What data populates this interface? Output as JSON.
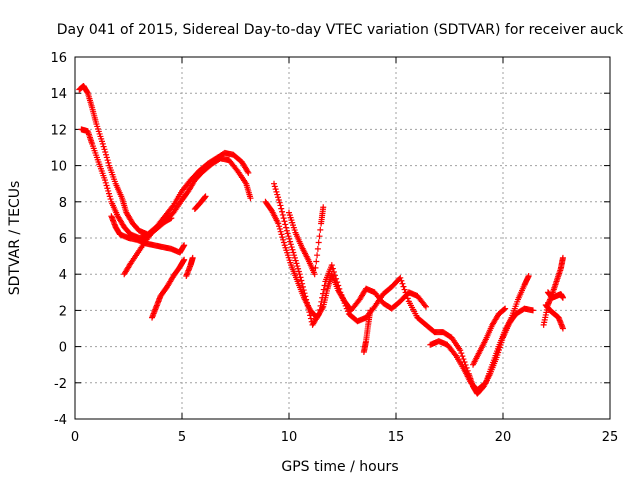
{
  "chart_data": {
    "type": "scatter",
    "title": "Day 041 of 2015, Sidereal Day-to-day VTEC variation (SDTVAR) for receiver auck",
    "xlabel": "GPS time / hours",
    "ylabel": "SDTVAR / TECUs",
    "xlim": [
      0,
      25
    ],
    "ylim": [
      -4,
      16
    ],
    "xticks": [
      0,
      5,
      10,
      15,
      20,
      25
    ],
    "yticks": [
      -4,
      -2,
      0,
      2,
      4,
      6,
      8,
      10,
      12,
      14,
      16
    ],
    "grid": true,
    "legend": "none",
    "marker": "+",
    "color": "#ff0000",
    "series": [
      {
        "name": "track-a",
        "points": [
          [
            0.2,
            14.2
          ],
          [
            0.4,
            14.4
          ],
          [
            0.6,
            14.0
          ],
          [
            0.8,
            13.2
          ],
          [
            1.0,
            12.3
          ],
          [
            1.3,
            11.2
          ],
          [
            1.6,
            10.0
          ],
          [
            1.9,
            9.0
          ],
          [
            2.2,
            8.2
          ],
          [
            2.4,
            7.4
          ],
          [
            2.7,
            6.8
          ],
          [
            3.0,
            6.4
          ],
          [
            3.4,
            6.2
          ],
          [
            3.8,
            6.6
          ],
          [
            4.2,
            7.2
          ],
          [
            4.6,
            7.8
          ],
          [
            5.0,
            8.6
          ],
          [
            5.4,
            9.2
          ],
          [
            5.8,
            9.7
          ],
          [
            6.2,
            10.1
          ],
          [
            6.6,
            10.4
          ],
          [
            7.0,
            10.7
          ],
          [
            7.4,
            10.6
          ],
          [
            7.8,
            10.2
          ],
          [
            8.1,
            9.6
          ]
        ]
      },
      {
        "name": "track-b",
        "points": [
          [
            0.3,
            12.0
          ],
          [
            0.6,
            11.9
          ],
          [
            0.8,
            11.2
          ],
          [
            1.1,
            10.2
          ],
          [
            1.4,
            9.2
          ],
          [
            1.7,
            8.0
          ],
          [
            2.0,
            7.2
          ],
          [
            2.3,
            6.6
          ],
          [
            2.6,
            6.2
          ],
          [
            3.0,
            6.0
          ],
          [
            3.4,
            6.1
          ],
          [
            3.8,
            6.5
          ],
          [
            4.2,
            6.9
          ],
          [
            4.6,
            7.4
          ],
          [
            5.0,
            8.1
          ],
          [
            5.3,
            8.6
          ],
          [
            5.6,
            9.2
          ],
          [
            6.0,
            9.7
          ],
          [
            6.4,
            10.1
          ],
          [
            6.8,
            10.4
          ],
          [
            7.2,
            10.3
          ],
          [
            7.6,
            9.7
          ],
          [
            8.0,
            9.0
          ],
          [
            8.2,
            8.2
          ]
        ]
      },
      {
        "name": "track-c",
        "points": [
          [
            1.7,
            7.2
          ],
          [
            1.9,
            6.6
          ],
          [
            2.1,
            6.2
          ],
          [
            2.5,
            6.0
          ],
          [
            2.9,
            5.9
          ],
          [
            3.3,
            5.7
          ],
          [
            3.7,
            5.6
          ],
          [
            4.1,
            5.5
          ],
          [
            4.5,
            5.4
          ],
          [
            4.9,
            5.2
          ],
          [
            5.1,
            5.6
          ]
        ]
      },
      {
        "name": "track-d",
        "points": [
          [
            2.3,
            4.0
          ],
          [
            2.6,
            4.6
          ],
          [
            3.0,
            5.3
          ],
          [
            3.4,
            6.0
          ],
          [
            3.8,
            6.6
          ],
          [
            4.2,
            6.9
          ],
          [
            4.5,
            7.1
          ]
        ]
      },
      {
        "name": "track-e",
        "points": [
          [
            3.6,
            1.6
          ],
          [
            3.8,
            2.2
          ],
          [
            4.0,
            2.8
          ],
          [
            4.3,
            3.3
          ],
          [
            4.6,
            3.9
          ],
          [
            4.9,
            4.4
          ],
          [
            5.1,
            4.8
          ]
        ]
      },
      {
        "name": "track-f",
        "points": [
          [
            5.2,
            3.9
          ],
          [
            5.4,
            4.5
          ],
          [
            5.5,
            4.9
          ]
        ]
      },
      {
        "name": "track-g",
        "points": [
          [
            5.6,
            7.6
          ],
          [
            5.9,
            8.0
          ],
          [
            6.1,
            8.3
          ]
        ]
      },
      {
        "name": "track-h",
        "points": [
          [
            8.9,
            8.0
          ],
          [
            9.2,
            7.5
          ],
          [
            9.5,
            6.8
          ],
          [
            9.8,
            5.6
          ],
          [
            10.1,
            4.5
          ],
          [
            10.4,
            3.6
          ],
          [
            10.7,
            2.7
          ],
          [
            11.0,
            2.0
          ],
          [
            11.3,
            1.6
          ],
          [
            11.6,
            2.2
          ],
          [
            11.8,
            3.2
          ],
          [
            12.0,
            4.0
          ],
          [
            12.3,
            3.1
          ],
          [
            12.6,
            2.5
          ],
          [
            12.9,
            2.0
          ],
          [
            13.3,
            2.6
          ],
          [
            13.6,
            3.2
          ],
          [
            14.0,
            3.0
          ],
          [
            14.4,
            2.4
          ],
          [
            14.8,
            2.1
          ],
          [
            15.2,
            2.5
          ],
          [
            15.6,
            3.0
          ],
          [
            16.0,
            2.8
          ],
          [
            16.4,
            2.2
          ]
        ]
      },
      {
        "name": "track-i",
        "points": [
          [
            9.3,
            9.0
          ],
          [
            9.6,
            7.8
          ],
          [
            9.9,
            6.4
          ],
          [
            10.2,
            5.2
          ],
          [
            10.5,
            4.0
          ],
          [
            10.8,
            2.6
          ],
          [
            11.1,
            1.2
          ],
          [
            11.4,
            1.8
          ],
          [
            11.7,
            3.6
          ],
          [
            12.0,
            4.5
          ],
          [
            12.4,
            3.0
          ],
          [
            12.8,
            1.8
          ],
          [
            13.2,
            1.4
          ],
          [
            13.6,
            1.6
          ],
          [
            14.0,
            2.2
          ],
          [
            14.4,
            2.9
          ],
          [
            14.8,
            3.3
          ],
          [
            15.2,
            3.8
          ],
          [
            15.6,
            2.5
          ],
          [
            16.0,
            1.6
          ],
          [
            16.4,
            1.2
          ],
          [
            16.8,
            0.8
          ],
          [
            17.2,
            0.8
          ],
          [
            17.6,
            0.5
          ],
          [
            18.0,
            -0.2
          ],
          [
            18.4,
            -1.5
          ],
          [
            18.6,
            -2.2
          ],
          [
            18.8,
            -2.6
          ],
          [
            19.1,
            -2.2
          ],
          [
            19.4,
            -1.5
          ],
          [
            19.7,
            -0.6
          ],
          [
            20.0,
            0.5
          ],
          [
            20.3,
            1.3
          ],
          [
            20.6,
            1.8
          ],
          [
            21.0,
            2.1
          ],
          [
            21.4,
            2.0
          ]
        ]
      },
      {
        "name": "track-j",
        "points": [
          [
            10.0,
            7.4
          ],
          [
            10.3,
            6.3
          ],
          [
            10.6,
            5.5
          ],
          [
            10.9,
            4.8
          ],
          [
            11.2,
            4.0
          ],
          [
            11.5,
            6.8
          ],
          [
            11.6,
            7.7
          ]
        ]
      },
      {
        "name": "track-k",
        "points": [
          [
            13.5,
            -0.3
          ],
          [
            13.6,
            0.3
          ],
          [
            13.7,
            1.2
          ],
          [
            13.8,
            2.0
          ]
        ]
      },
      {
        "name": "track-l",
        "points": [
          [
            16.6,
            0.1
          ],
          [
            17.0,
            0.3
          ],
          [
            17.4,
            0.1
          ],
          [
            17.8,
            -0.5
          ],
          [
            18.2,
            -1.3
          ],
          [
            18.5,
            -2.0
          ],
          [
            18.8,
            -2.4
          ],
          [
            19.2,
            -2.0
          ],
          [
            19.5,
            -1.0
          ],
          [
            19.8,
            0.0
          ],
          [
            20.1,
            0.9
          ],
          [
            20.4,
            1.6
          ],
          [
            20.7,
            2.6
          ],
          [
            21.0,
            3.4
          ],
          [
            21.2,
            3.9
          ]
        ]
      },
      {
        "name": "track-m",
        "points": [
          [
            18.6,
            -1.0
          ],
          [
            18.9,
            -0.3
          ],
          [
            19.2,
            0.4
          ],
          [
            19.5,
            1.2
          ],
          [
            19.8,
            1.8
          ],
          [
            20.1,
            2.1
          ]
        ]
      },
      {
        "name": "track-n",
        "points": [
          [
            22.0,
            2.3
          ],
          [
            22.2,
            2.0
          ],
          [
            22.4,
            1.8
          ],
          [
            22.6,
            1.6
          ],
          [
            22.8,
            1.0
          ]
        ]
      },
      {
        "name": "track-o",
        "points": [
          [
            21.9,
            1.2
          ],
          [
            22.1,
            2.3
          ],
          [
            22.3,
            2.9
          ],
          [
            22.5,
            3.6
          ],
          [
            22.7,
            4.3
          ],
          [
            22.8,
            4.9
          ]
        ]
      },
      {
        "name": "track-p",
        "points": [
          [
            22.1,
            3.0
          ],
          [
            22.3,
            2.7
          ],
          [
            22.5,
            2.8
          ],
          [
            22.7,
            2.9
          ],
          [
            22.8,
            2.7
          ]
        ]
      }
    ]
  }
}
